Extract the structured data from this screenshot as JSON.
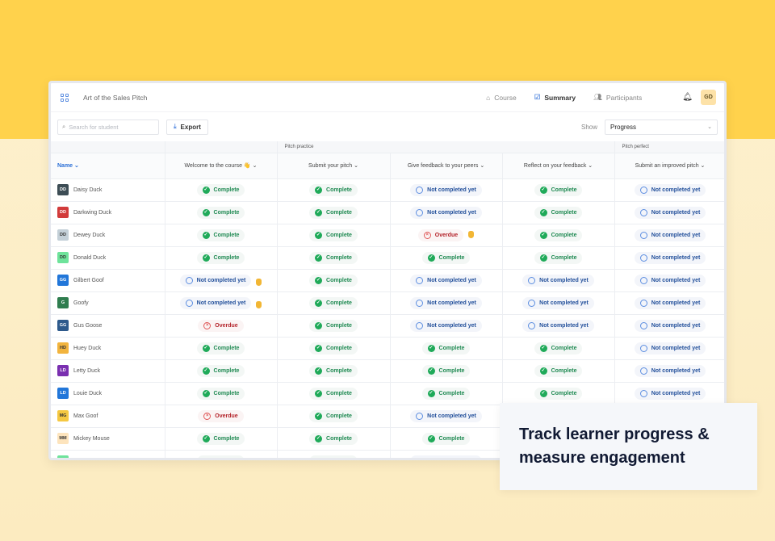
{
  "app": {
    "title": "Art of the Sales Pitch",
    "nav": [
      {
        "label": "Course",
        "icon": "home-icon"
      },
      {
        "label": "Summary",
        "icon": "checkbox-icon",
        "active": true
      },
      {
        "label": "Participants",
        "icon": "users-icon"
      }
    ],
    "user_initials": "GD"
  },
  "toolbar": {
    "search_placeholder": "Search for student",
    "export_label": "Export",
    "show_label": "Show",
    "show_value": "Progress"
  },
  "table": {
    "groups": [
      "",
      "",
      "Pitch practice",
      "",
      "",
      "",
      "Pitch perfect"
    ],
    "name_header": "Name",
    "columns": [
      "Welcome to the course 👋",
      "Submit your pitch",
      "Give feedback to your peers",
      "Reflect on your feedback",
      "Submit an improved pitch"
    ],
    "status_labels": {
      "C": "Complete",
      "N": "Not completed yet",
      "O": "Overdue"
    },
    "colors": {
      "complete": "#1faa59",
      "not_completed": "#5b8de0",
      "overdue": "#e05a5a"
    },
    "rows": [
      {
        "name": "Daisy Duck",
        "initials": "DD",
        "color": "#3d4d55",
        "s": [
          "C",
          "C",
          "N",
          "C",
          "N"
        ]
      },
      {
        "name": "Darkwing Duck",
        "initials": "DD",
        "color": "#d23b3b",
        "s": [
          "C",
          "C",
          "N",
          "C",
          "N"
        ]
      },
      {
        "name": "Dewey Duck",
        "initials": "DD",
        "color": "#c4d0d8",
        "s": [
          "C",
          "C",
          "O*",
          "C",
          "N"
        ]
      },
      {
        "name": "Donald Duck",
        "initials": "DD",
        "color": "#6ee39b",
        "s": [
          "C",
          "C",
          "C",
          "C",
          "N"
        ]
      },
      {
        "name": "Gilbert Goof",
        "initials": "GG",
        "color": "#2176d9",
        "s": [
          "N*",
          "C",
          "N",
          "N",
          "N"
        ]
      },
      {
        "name": "Goofy",
        "initials": "G",
        "color": "#2f7d4f",
        "s": [
          "N*",
          "C",
          "N",
          "N",
          "N"
        ]
      },
      {
        "name": "Gus Goose",
        "initials": "GG",
        "color": "#2e5a8c",
        "s": [
          "O",
          "C",
          "N",
          "N",
          "N"
        ]
      },
      {
        "name": "Huey Duck",
        "initials": "HD",
        "color": "#f2b43e",
        "s": [
          "C",
          "C",
          "C",
          "C",
          "N"
        ]
      },
      {
        "name": "Letty Duck",
        "initials": "LD",
        "color": "#7a2fb0",
        "s": [
          "C",
          "C",
          "C",
          "C",
          "N"
        ]
      },
      {
        "name": "Louie Duck",
        "initials": "LD",
        "color": "#2176d9",
        "s": [
          "C",
          "C",
          "C",
          "C",
          "N"
        ]
      },
      {
        "name": "Max Goof",
        "initials": "MG",
        "color": "#f5c842",
        "s": [
          "O",
          "C",
          "N",
          "",
          ""
        ]
      },
      {
        "name": "Mickey Mouse",
        "initials": "MM",
        "color": "#fde4bd",
        "s": [
          "C",
          "C",
          "C",
          "",
          ""
        ]
      },
      {
        "name": "",
        "initials": "",
        "color": "#6ee39b",
        "s": [
          "C",
          "C",
          "N",
          "",
          ""
        ]
      }
    ]
  },
  "promo": {
    "line1": "Track learner progress &",
    "line2": "measure engagement"
  }
}
